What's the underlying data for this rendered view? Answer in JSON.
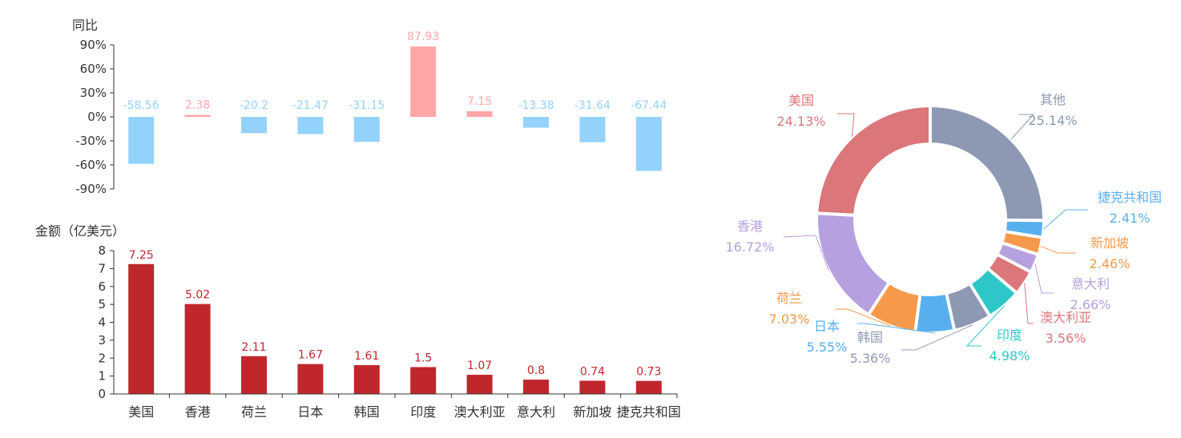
{
  "chart_data": [
    {
      "type": "bar",
      "ylabel": "同比",
      "y_unit": "%",
      "ylim": [
        -90,
        90
      ],
      "yticks": [
        "90%",
        "60%",
        "30%",
        "0%",
        "-30%",
        "-60%",
        "-90%"
      ],
      "categories": [
        "美国",
        "香港",
        "荷兰",
        "日本",
        "韩国",
        "印度",
        "澳大利亚",
        "意大利",
        "新加坡",
        "捷克共和国"
      ],
      "values": [
        -58.56,
        2.38,
        -20.2,
        -21.47,
        -31.15,
        87.93,
        7.15,
        -13.38,
        -31.64,
        -67.44
      ],
      "colors": {
        "positive": "#ffa7a7",
        "negative": "#93d2fb"
      }
    },
    {
      "type": "bar",
      "ylabel": "金额（亿美元）",
      "ylim": [
        0,
        8
      ],
      "yticks": [
        "8",
        "7",
        "6",
        "5",
        "4",
        "3",
        "2",
        "1",
        "0"
      ],
      "categories": [
        "美国",
        "香港",
        "荷兰",
        "日本",
        "韩国",
        "印度",
        "澳大利亚",
        "意大利",
        "新加坡",
        "捷克共和国"
      ],
      "values": [
        7.25,
        5.02,
        2.11,
        1.67,
        1.61,
        1.5,
        1.07,
        0.8,
        0.74,
        0.73
      ],
      "color": "#c0272d"
    },
    {
      "type": "pie",
      "donut": true,
      "slices": [
        {
          "name": "其他",
          "value": 25.14,
          "label": "25.14%",
          "color": "#8d98b3"
        },
        {
          "name": "捷克共和国",
          "value": 2.41,
          "label": "2.41%",
          "color": "#58afee"
        },
        {
          "name": "新加坡",
          "value": 2.46,
          "label": "2.46%",
          "color": "#f6994a"
        },
        {
          "name": "意大利",
          "value": 2.66,
          "label": "2.66%",
          "color": "#b6a0df"
        },
        {
          "name": "澳大利亚",
          "value": 3.56,
          "label": "3.56%",
          "color": "#db767a"
        },
        {
          "name": "印度",
          "value": 4.98,
          "label": "4.98%",
          "color": "#2ec7c9"
        },
        {
          "name": "韩国",
          "value": 5.36,
          "label": "5.36%",
          "color": "#8d98b3"
        },
        {
          "name": "日本",
          "value": 5.55,
          "label": "5.55%",
          "color": "#58afee"
        },
        {
          "name": "荷兰",
          "value": 7.03,
          "label": "7.03%",
          "color": "#f6994a"
        },
        {
          "name": "香港",
          "value": 16.72,
          "label": "16.72%",
          "color": "#b6a0df"
        },
        {
          "name": "美国",
          "value": 24.13,
          "label": "24.13%",
          "color": "#db767a"
        }
      ]
    }
  ]
}
